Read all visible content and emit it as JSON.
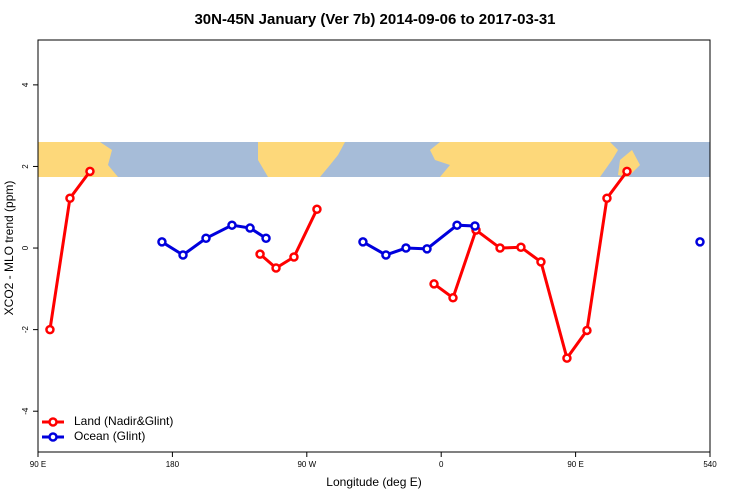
{
  "chart_data": {
    "type": "line",
    "title": "30N-45N January (Ver 7b)   2014-09-06 to 2017-03-31",
    "x_label": "Longitude (deg E)",
    "y_label": "XCO2 - MLO trend (ppm)",
    "xlim": [
      90,
      540
    ],
    "ylim": [
      -5,
      5.1
    ],
    "xticks": [
      {
        "value": 90,
        "label": "90 E"
      },
      180,
      {
        "value": 270,
        "label": "90 W"
      },
      {
        "value": 360,
        "label": "0"
      },
      {
        "value": 450,
        "label": "90 E"
      },
      540
    ],
    "yticks": [
      -4,
      -2,
      0,
      2,
      4
    ],
    "legend": "bottom-left",
    "series": [
      {
        "name": "Land (Nadir&Glint)",
        "color": "#ff0000",
        "x": [
          98,
          111.4,
          124.8,
          null,
          238.7,
          249.4,
          261.4,
          276.8,
          null,
          355.2,
          367.9,
          383.3,
          399.4,
          413.4,
          426.8,
          444.2,
          457.6,
          471,
          484.4
        ],
        "values": [
          -2.0,
          1.22,
          1.88,
          null,
          -0.15,
          -0.49,
          -0.22,
          0.95,
          null,
          -0.88,
          -1.22,
          0.44,
          0.0,
          0.02,
          -0.34,
          -2.7,
          -2.02,
          1.22,
          1.88
        ]
      },
      {
        "name": "Ocean (Glint)",
        "color": "#0000dd",
        "x": [
          173,
          187.1,
          202.5,
          219.9,
          232,
          242.7,
          null,
          307.6,
          323,
          336.4,
          350.5,
          370.6,
          382.6,
          null,
          533.3
        ],
        "values": [
          0.15,
          -0.17,
          0.24,
          0.56,
          0.49,
          0.24,
          null,
          0.15,
          -0.17,
          0.0,
          -0.02,
          0.56,
          0.54,
          null,
          0.15
        ]
      }
    ]
  }
}
